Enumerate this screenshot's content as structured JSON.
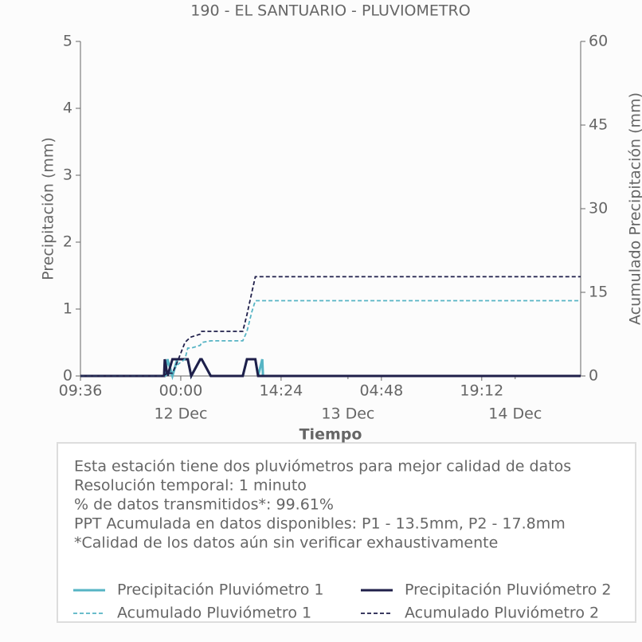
{
  "chart_data": {
    "type": "line",
    "title": "190 - EL SANTUARIO - PLUVIOMETRO",
    "xlabel": "Tiempo",
    "ylabel": "Precipitación (mm)",
    "y2label": "Acumulado Precipitación (mm)",
    "x": [
      "11 Dec 09:36",
      "11 Dec 21:36",
      "11 Dec 21:42",
      "11 Dec 22:06",
      "11 Dec 22:48",
      "11 Dec 23:30",
      "12 Dec 00:36",
      "12 Dec 01:00",
      "12 Dec 01:30",
      "12 Dec 02:48",
      "12 Dec 03:00",
      "12 Dec 04:18",
      "12 Dec 08:54",
      "12 Dec 09:30",
      "12 Dec 10:12",
      "12 Dec 10:42",
      "12 Dec 11:06",
      "12 Dec 11:42",
      "12 Dec 11:48",
      "14 Dec 09:24"
    ],
    "xlim": [
      "11 Dec 09:36",
      "14 Dec 09:24"
    ],
    "xticks": [
      {
        "value": "11 Dec 09:36",
        "label": "09:36"
      },
      {
        "value": "12 Dec 00:00",
        "label": "00:00"
      },
      {
        "value": "12 Dec 14:24",
        "label": "14:24"
      },
      {
        "value": "13 Dec 04:48",
        "label": "04:48"
      },
      {
        "value": "13 Dec 19:12",
        "label": "19:12"
      }
    ],
    "xday_ticks": [
      {
        "value": "12 Dec 00:00",
        "label": "12 Dec"
      },
      {
        "value": "13 Dec 00:00",
        "label": "13 Dec"
      },
      {
        "value": "14 Dec 00:00",
        "label": "14 Dec"
      }
    ],
    "ylim": [
      0,
      5
    ],
    "yticks": [
      0,
      1,
      2,
      3,
      4,
      5
    ],
    "y2lim": [
      0,
      60
    ],
    "y2ticks": [
      0,
      15,
      30,
      45,
      60
    ],
    "series": [
      {
        "name": "Precipitación Pluviómetro 1",
        "color": "#56b4c4",
        "linestyle": "solid",
        "values": [
          0,
          0,
          0,
          0.25,
          0,
          0.25,
          0.25,
          0.25,
          0,
          0.25,
          0.25,
          0,
          0,
          0.25,
          0.25,
          0.25,
          0,
          0.25,
          0,
          0
        ]
      },
      {
        "name": "Precipitación Pluviómetro 2",
        "color": "#1f1f4a",
        "linestyle": "solid",
        "values": [
          0,
          0,
          0.25,
          0,
          0.25,
          0.25,
          0.25,
          0.25,
          0,
          0.25,
          0.25,
          0,
          0,
          0.25,
          0.25,
          0.25,
          0,
          0,
          0,
          0
        ]
      },
      {
        "name": "Acumulado Pluviómetro 1",
        "color": "#56b4c4",
        "linestyle": "dashed",
        "axis": "y2",
        "values": [
          0,
          0,
          0,
          0.2,
          0.5,
          2.0,
          3.0,
          5.0,
          5.0,
          5.5,
          6.0,
          6.3,
          6.3,
          8.0,
          11.5,
          13.5,
          13.5,
          13.5,
          13.5,
          13.5
        ]
      },
      {
        "name": "Acumulado Pluviómetro 2",
        "color": "#1f1f4a",
        "linestyle": "dashed",
        "axis": "y2",
        "values": [
          0,
          0,
          0.2,
          0.5,
          0.5,
          2.5,
          6.0,
          6.5,
          7.0,
          7.5,
          8.0,
          8.0,
          8.0,
          11.0,
          15.0,
          17.8,
          17.8,
          17.8,
          17.8,
          17.8
        ]
      }
    ],
    "annotation_lines": [
      "Esta estación tiene dos pluviómetros para mejor calidad de datos",
      "Resolución temporal: 1 minuto",
      "% de datos transmitidos*: 99.61%",
      "PPT Acumulada en datos disponibles: P1 - 13.5mm, P2 - 17.8mm",
      "*Calidad de los datos aún sin verificar exhaustivamente"
    ]
  }
}
